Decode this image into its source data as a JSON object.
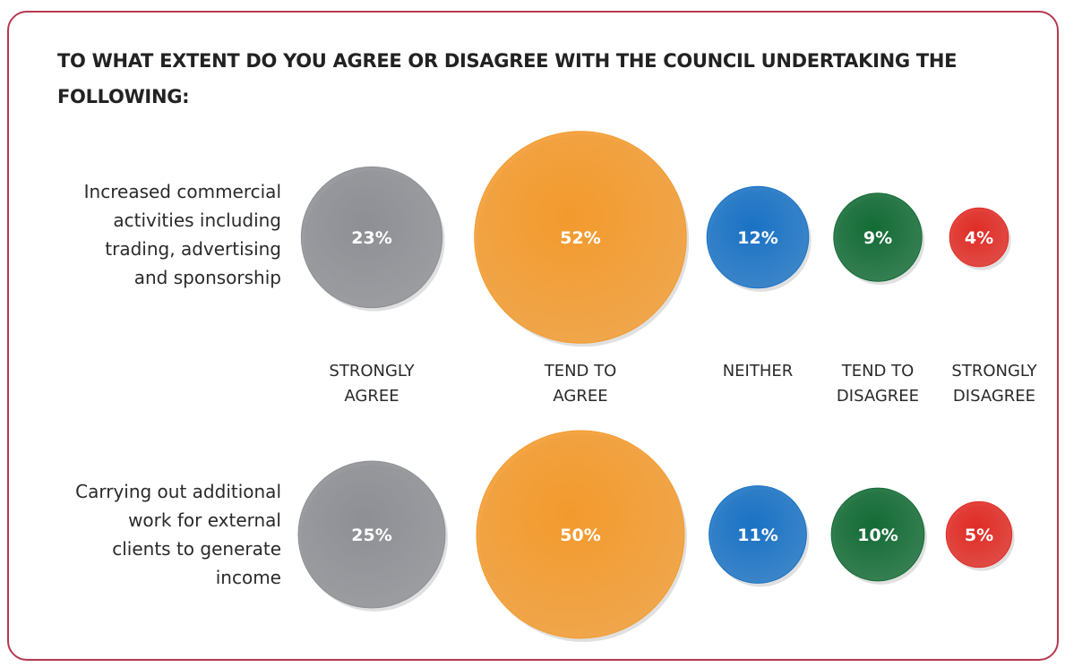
{
  "title": "TO WHAT EXTENT DO YOU AGREE OR DISAGREE WITH THE COUNCIL UNDERTAKING THE FOLLOWING:",
  "chart_data": {
    "type": "bubble",
    "title": "TO WHAT EXTENT DO YOU AGREE OR DISAGREE WITH THE COUNCIL UNDERTAKING THE FOLLOWING:",
    "categories": [
      [
        "STRONGLY",
        "AGREE"
      ],
      [
        "TEND TO",
        "AGREE"
      ],
      [
        "NEITHER"
      ],
      [
        "TEND TO",
        "DISAGREE"
      ],
      [
        "STRONGLY",
        "DISAGREE"
      ]
    ],
    "colors": [
      "#8d8f94",
      "#f39a2d",
      "#1a72c4",
      "#136b35",
      "#e02c25"
    ],
    "rows": [
      {
        "label": [
          "Increased commercial",
          "activities including",
          "trading, advertising",
          "and sponsorship"
        ],
        "values": [
          23,
          52,
          12,
          9,
          4
        ],
        "value_labels": [
          "23%",
          "52%",
          "12%",
          "9%",
          "4%"
        ]
      },
      {
        "label": [
          "Carrying out additional",
          "work for external",
          "clients to generate",
          "income"
        ],
        "values": [
          25,
          50,
          11,
          10,
          5
        ],
        "value_labels": [
          "25%",
          "50%",
          "11%",
          "10%",
          "5%"
        ]
      }
    ]
  }
}
